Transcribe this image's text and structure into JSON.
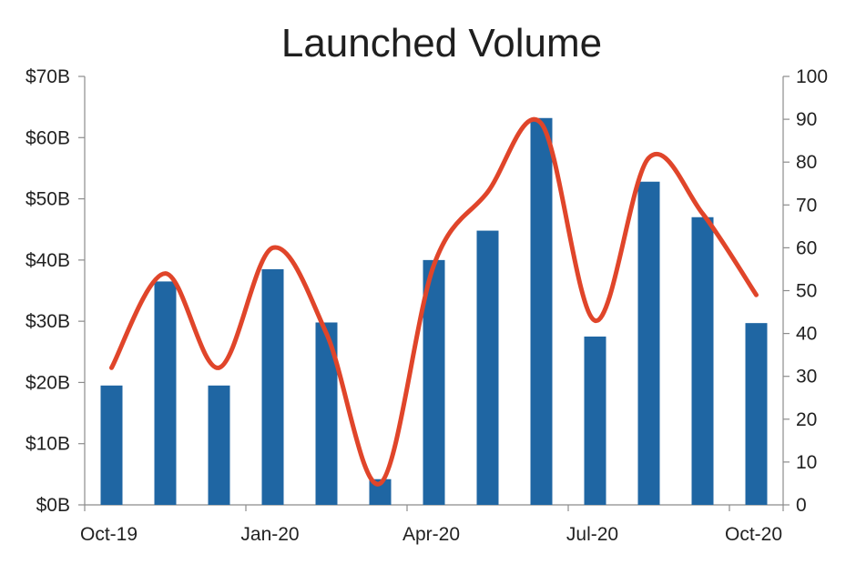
{
  "chart_data": {
    "type": "bar",
    "title": "Launched Volume",
    "x": [
      "Oct-19",
      "Nov-19",
      "Dec-19",
      "Jan-20",
      "Feb-20",
      "Mar-20",
      "Apr-20",
      "May-20",
      "Jun-20",
      "Jul-20",
      "Aug-20",
      "Sep-20",
      "Oct-20"
    ],
    "x_tick_labels": [
      "Oct-19",
      "Jan-20",
      "Apr-20",
      "Jul-20",
      "Oct-20"
    ],
    "series": [
      {
        "type": "bar",
        "axis": "left",
        "values": [
          19.5,
          36.5,
          19.5,
          38.5,
          29.8,
          4.2,
          40.0,
          44.8,
          63.2,
          27.5,
          52.8,
          47.0,
          29.7
        ],
        "color": "#1f66a3"
      },
      {
        "type": "line",
        "axis": "right",
        "smooth": true,
        "values": [
          32,
          54,
          32,
          60,
          40,
          5,
          56,
          73,
          89,
          43,
          81,
          68,
          49
        ],
        "color": "#e0452a"
      }
    ],
    "y_left": {
      "ylim": [
        0,
        70
      ],
      "ticks": [
        0,
        10,
        20,
        30,
        40,
        50,
        60,
        70
      ],
      "tick_labels": [
        "$0B",
        "$10B",
        "$20B",
        "$30B",
        "$40B",
        "$50B",
        "$60B",
        "$70B"
      ]
    },
    "y_right": {
      "ylim": [
        0,
        100
      ],
      "ticks": [
        0,
        10,
        20,
        30,
        40,
        50,
        60,
        70,
        80,
        90,
        100
      ],
      "tick_labels": [
        "0",
        "10",
        "20",
        "30",
        "40",
        "50",
        "60",
        "70",
        "80",
        "90",
        "100"
      ]
    },
    "grid": false,
    "legend": "none"
  }
}
